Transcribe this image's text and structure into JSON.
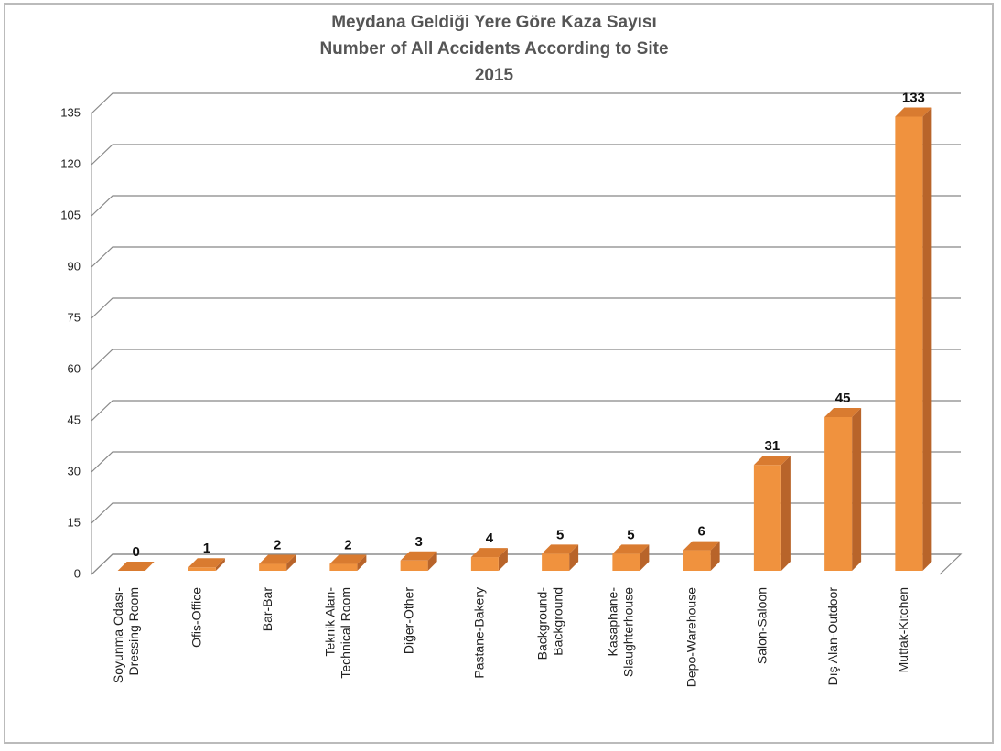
{
  "chart_data": {
    "type": "bar3d",
    "title": [
      "Meydana Geldiği Yere Göre Kaza Sayısı",
      "Number of  All Accidents  According to Site",
      "2015"
    ],
    "categories": [
      [
        "Soyunma Odası-",
        "Dressing Room"
      ],
      [
        "Ofis-Office"
      ],
      [
        "Bar-Bar"
      ],
      [
        "Teknik Alan-",
        "Technical Room"
      ],
      [
        "Diğer-Other"
      ],
      [
        "Pastane-Bakery"
      ],
      [
        "Background-",
        "Background"
      ],
      [
        "Kasaphane-",
        "Slaughterhouse"
      ],
      [
        "Depo-Warehouse"
      ],
      [
        "Salon-Saloon"
      ],
      [
        "Dış Alan-Outdoor"
      ],
      [
        "Mutfak-Kitchen"
      ]
    ],
    "values": [
      0,
      1,
      2,
      2,
      3,
      4,
      5,
      5,
      6,
      31,
      45,
      133
    ],
    "color": "#f0923e",
    "ylim": [
      0,
      135
    ],
    "yticks": [
      0,
      15,
      30,
      45,
      60,
      75,
      90,
      105,
      120,
      135
    ],
    "grid": true
  }
}
